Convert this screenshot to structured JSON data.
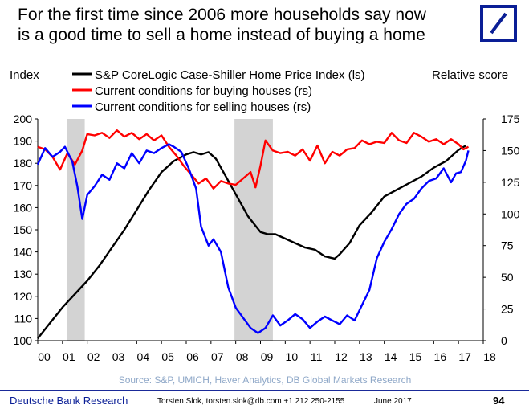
{
  "title_line1": "For the first time since 2006 more households say now",
  "title_line2": "is a good time to sell a home instead of buying a home",
  "logo_icon": "deutsche-bank-slash-logo-icon",
  "footer": {
    "brand": "Deutsche Bank Research",
    "contact": "Torsten Slok, torsten.slok@db.com  +1 212 250-2155",
    "date": "June 2017",
    "page": "94"
  },
  "chart_data": {
    "type": "line",
    "left_axis_label": "Index",
    "right_axis_label": "Relative score",
    "source": "Source: S&P, UMICH, Haver Analytics, DB Global Markets Research",
    "xlim": [
      2000,
      2018
    ],
    "ylim_left": [
      100,
      200
    ],
    "ylim_right": [
      0,
      175
    ],
    "x_ticks": [
      "00",
      "01",
      "02",
      "03",
      "04",
      "05",
      "06",
      "07",
      "08",
      "09",
      "10",
      "11",
      "12",
      "13",
      "14",
      "15",
      "16",
      "17",
      "18"
    ],
    "y_ticks_left": [
      100,
      110,
      120,
      130,
      140,
      150,
      160,
      170,
      180,
      190,
      200
    ],
    "y_ticks_right": [
      0,
      25,
      50,
      75,
      100,
      125,
      150,
      175
    ],
    "recessions": [
      [
        2001.2,
        2001.9
      ],
      [
        2007.95,
        2009.5
      ]
    ],
    "series": [
      {
        "name": "S&P CoreLogic Case-Shiller Home Price Index (ls)",
        "axis": "left",
        "color": "#000000",
        "x": [
          2000.0,
          2000.5,
          2001.0,
          2001.5,
          2002.0,
          2002.5,
          2003.0,
          2003.5,
          2004.0,
          2004.5,
          2005.0,
          2005.5,
          2006.0,
          2006.3,
          2006.6,
          2006.9,
          2007.2,
          2007.5,
          2008.0,
          2008.5,
          2009.0,
          2009.3,
          2009.6,
          2010.0,
          2010.4,
          2010.8,
          2011.2,
          2011.6,
          2012.0,
          2012.2,
          2012.6,
          2013.0,
          2013.5,
          2014.0,
          2014.5,
          2015.0,
          2015.5,
          2016.0,
          2016.5,
          2017.0,
          2017.3
        ],
        "values": [
          101,
          108,
          115,
          121,
          127,
          134,
          142,
          150,
          159,
          168,
          176,
          181,
          184,
          185,
          184,
          185,
          182,
          176,
          166,
          156,
          149,
          148,
          148,
          146,
          144,
          142,
          141,
          138,
          137,
          139,
          144,
          152,
          158,
          165,
          168,
          171,
          174,
          178,
          181,
          186,
          188
        ]
      },
      {
        "name": "Current conditions for buying houses (rs)",
        "axis": "right",
        "color": "#ff0000",
        "x": [
          2000.0,
          2000.3,
          2000.6,
          2000.9,
          2001.2,
          2001.5,
          2001.8,
          2002.0,
          2002.3,
          2002.6,
          2002.9,
          2003.2,
          2003.5,
          2003.8,
          2004.1,
          2004.4,
          2004.7,
          2005.0,
          2005.3,
          2005.6,
          2005.9,
          2006.2,
          2006.5,
          2006.8,
          2007.1,
          2007.4,
          2007.7,
          2008.0,
          2008.3,
          2008.6,
          2008.8,
          2009.0,
          2009.2,
          2009.5,
          2009.8,
          2010.1,
          2010.4,
          2010.7,
          2011.0,
          2011.3,
          2011.6,
          2011.9,
          2012.2,
          2012.5,
          2012.8,
          2013.1,
          2013.4,
          2013.7,
          2014.0,
          2014.3,
          2014.6,
          2014.9,
          2015.2,
          2015.5,
          2015.8,
          2016.1,
          2016.4,
          2016.7,
          2017.0,
          2017.2,
          2017.4
        ],
        "values": [
          153,
          151,
          145,
          135,
          148,
          139,
          150,
          163,
          162,
          164,
          160,
          166,
          161,
          164,
          159,
          163,
          158,
          162,
          153,
          146,
          138,
          131,
          124,
          128,
          120,
          126,
          124,
          123,
          128,
          133,
          121,
          138,
          158,
          150,
          148,
          149,
          146,
          151,
          142,
          154,
          140,
          149,
          146,
          151,
          152,
          158,
          155,
          157,
          156,
          164,
          158,
          156,
          164,
          161,
          157,
          159,
          155,
          159,
          155,
          151,
          153
        ]
      },
      {
        "name": "Current conditions for selling houses (rs)",
        "axis": "right",
        "color": "#0000ff",
        "x": [
          2000.0,
          2000.3,
          2000.6,
          2000.9,
          2001.1,
          2001.4,
          2001.6,
          2001.8,
          2002.0,
          2002.3,
          2002.6,
          2002.9,
          2003.2,
          2003.5,
          2003.8,
          2004.1,
          2004.4,
          2004.7,
          2005.0,
          2005.3,
          2005.5,
          2005.8,
          2006.1,
          2006.4,
          2006.6,
          2006.9,
          2007.1,
          2007.4,
          2007.7,
          2008.0,
          2008.3,
          2008.6,
          2008.9,
          2009.2,
          2009.5,
          2009.8,
          2010.1,
          2010.4,
          2010.7,
          2011.0,
          2011.3,
          2011.6,
          2011.9,
          2012.2,
          2012.5,
          2012.8,
          2013.1,
          2013.4,
          2013.7,
          2014.0,
          2014.3,
          2014.6,
          2014.9,
          2015.2,
          2015.5,
          2015.8,
          2016.1,
          2016.4,
          2016.7,
          2016.9,
          2017.1,
          2017.3,
          2017.4
        ],
        "values": [
          139,
          152,
          145,
          149,
          153,
          141,
          122,
          96,
          115,
          122,
          131,
          127,
          140,
          136,
          148,
          140,
          150,
          148,
          152,
          155,
          153,
          149,
          136,
          120,
          90,
          75,
          80,
          70,
          42,
          26,
          18,
          10,
          6,
          10,
          20,
          12,
          16,
          21,
          17,
          10,
          15,
          19,
          16,
          13,
          20,
          16,
          28,
          40,
          65,
          78,
          88,
          100,
          108,
          112,
          120,
          126,
          128,
          136,
          125,
          132,
          133,
          142,
          150
        ]
      }
    ]
  }
}
